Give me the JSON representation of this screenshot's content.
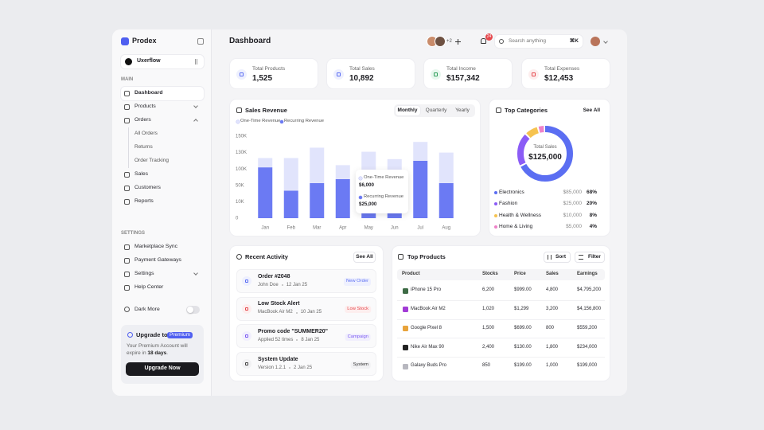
{
  "sidebar": {
    "brand": "Prodex",
    "workspace": "Uxerflow",
    "sections": [
      {
        "title": "MAIN",
        "items": [
          {
            "label": "Dashboard"
          },
          {
            "label": "Products"
          },
          {
            "label": "Orders",
            "children": [
              "All Orders",
              "Returns",
              "Order Tracking"
            ]
          },
          {
            "label": "Sales"
          },
          {
            "label": "Customers"
          },
          {
            "label": "Reports"
          }
        ]
      },
      {
        "title": "SETTINGS",
        "items": [
          {
            "label": "Marketplace Sync"
          },
          {
            "label": "Payment Gateways"
          },
          {
            "label": "Settings"
          },
          {
            "label": "Help Center"
          }
        ]
      }
    ],
    "dark_mode": "Dark More",
    "upgrade": {
      "title": "Upgrade to",
      "badge": "Premium",
      "text": "Your Premium Account will expire in",
      "highlight": "18 days",
      "end": ".",
      "button": "Upgrade Now"
    }
  },
  "header": {
    "title": "Dashboard",
    "avatar_more": "+2",
    "notifications": "24",
    "search_placeholder": "Search anything",
    "shortcut": "⌘K"
  },
  "stats": [
    {
      "label": "Total Products",
      "value": "1,525"
    },
    {
      "label": "Total Sales",
      "value": "10,892"
    },
    {
      "label": "Total Income",
      "value": "$157,342"
    },
    {
      "label": "Total Expenses",
      "value": "$12,453"
    }
  ],
  "sales_revenue": {
    "title": "Sales Revenue",
    "tabs": [
      "Monthly",
      "Quarterly",
      "Yearly"
    ],
    "chart": {
      "type": "bar",
      "stacked": true,
      "categories": [
        "Jan",
        "Feb",
        "Mar",
        "Apr",
        "May",
        "Jun",
        "Jul",
        "Aug"
      ],
      "series": [
        {
          "name": "One-Time Revenue",
          "color": "#e1e4fc",
          "values": [
            17000,
            83000,
            79000,
            38000,
            43000,
            113000,
            28000,
            73000
          ]
        },
        {
          "name": "Recurring Revenue",
          "color": "#6b7af3",
          "values": [
            103000,
            37000,
            57000,
            69000,
            88000,
            5000,
            115000,
            57000
          ]
        }
      ],
      "ylim": [
        0,
        150000
      ],
      "yticks": [
        0,
        {
          "value": 10000,
          "label": "10K"
        },
        {
          "value": 50000,
          "label": "50K"
        },
        {
          "value": 100000,
          "label": "100K"
        },
        {
          "value": 130000,
          "label": "130K"
        },
        {
          "value": 150000,
          "label": "150K"
        }
      ]
    },
    "tooltip": {
      "rows": [
        {
          "label": "One-Time Revenue",
          "value": "$6,000"
        },
        {
          "label": "Recurring Revenue",
          "value": "$25,000"
        }
      ]
    }
  },
  "top_categories": {
    "title": "Top Categories",
    "action": "See All",
    "center_label": "Total Sales",
    "center_value": "$125,000",
    "chart": {
      "type": "donut",
      "categories": [
        "Electronics",
        "Fashion",
        "Health & Wellness",
        "Home & Living"
      ],
      "values": [
        68,
        20,
        8,
        4
      ],
      "value_labels": [
        "68%",
        "20%",
        "8%",
        "4%"
      ],
      "amounts": [
        "$85,000",
        "$25,000",
        "$10,000",
        "$5,000"
      ],
      "colors": [
        "#5b6ef2",
        "#8b5cf6",
        "#f6c350",
        "#ee82c8"
      ]
    }
  },
  "recent_activity": {
    "title": "Recent Activity",
    "action": "See All",
    "items": [
      {
        "title": "Order #2048",
        "subtitle": "John Doe",
        "date": "12 Jan 25",
        "tag": "New Order"
      },
      {
        "title": "Low Stock Alert",
        "subtitle": "MacBook Air M2",
        "date": "10 Jan 25",
        "tag": "Low Stock"
      },
      {
        "title": "Promo code \"SUMMER20\"",
        "subtitle": "Applied 52 times",
        "date": "8 Jan 25",
        "tag": "Campaign"
      },
      {
        "title": "System Update",
        "subtitle": "Version 1.2.1",
        "date": "2 Jan 25",
        "tag": "System"
      }
    ]
  },
  "top_products": {
    "title": "Top Products",
    "sort": "Sort",
    "filter": "Filter",
    "table": {
      "header": [
        "Product",
        "Stocks",
        "Price",
        "Sales",
        "Earnings"
      ],
      "rows": [
        [
          "iPhone 15 Pro",
          "6,200",
          "$999.00",
          "4,800",
          "$4,795,200"
        ],
        [
          "MacBook Air M2",
          "1,020",
          "$1,299",
          "3,200",
          "$4,156,800"
        ],
        [
          "Google Pixel 8",
          "1,500",
          "$699.00",
          "800",
          "$559,200"
        ],
        [
          "Nike Air Max 90",
          "2,400",
          "$130.00",
          "1,800",
          "$234,000"
        ],
        [
          "Galaxy Buds Pro",
          "850",
          "$199.00",
          "1,000",
          "$199,000"
        ]
      ]
    }
  }
}
